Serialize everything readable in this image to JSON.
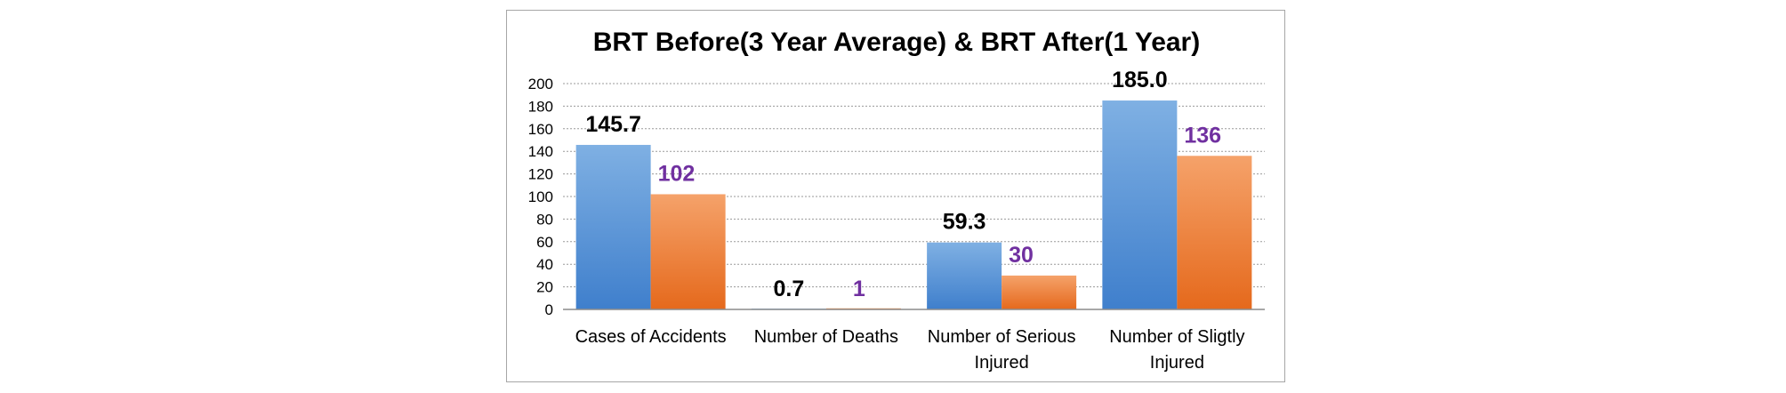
{
  "chart_data": {
    "type": "bar",
    "title": "BRT Before(3 Year Average) & BRT After(1 Year)",
    "categories": [
      [
        "Cases of Accidents"
      ],
      [
        "Number of Deaths"
      ],
      [
        "Number of Serious",
        "Injured"
      ],
      [
        "Number of Sligtly",
        "Injured"
      ]
    ],
    "series": [
      {
        "values": [
          145.7,
          0.7,
          59.3,
          185.0
        ],
        "labels": [
          "145.7",
          "0.7",
          "59.3",
          "185.0"
        ],
        "color_light": "#7fb0e3",
        "color_dark": "#3f7fcc",
        "label_color": "#000000"
      },
      {
        "values": [
          102,
          1,
          30,
          136
        ],
        "labels": [
          "102",
          "1",
          "30",
          "136"
        ],
        "color_light": "#f5a26a",
        "color_dark": "#e5691c",
        "label_color": "#7030a0"
      }
    ],
    "ylim": [
      0,
      200
    ],
    "yticks": [
      "0",
      "20",
      "40",
      "60",
      "80",
      "100",
      "120",
      "140",
      "160",
      "180",
      "200"
    ],
    "grid": true,
    "gridline_style": "dotted"
  }
}
